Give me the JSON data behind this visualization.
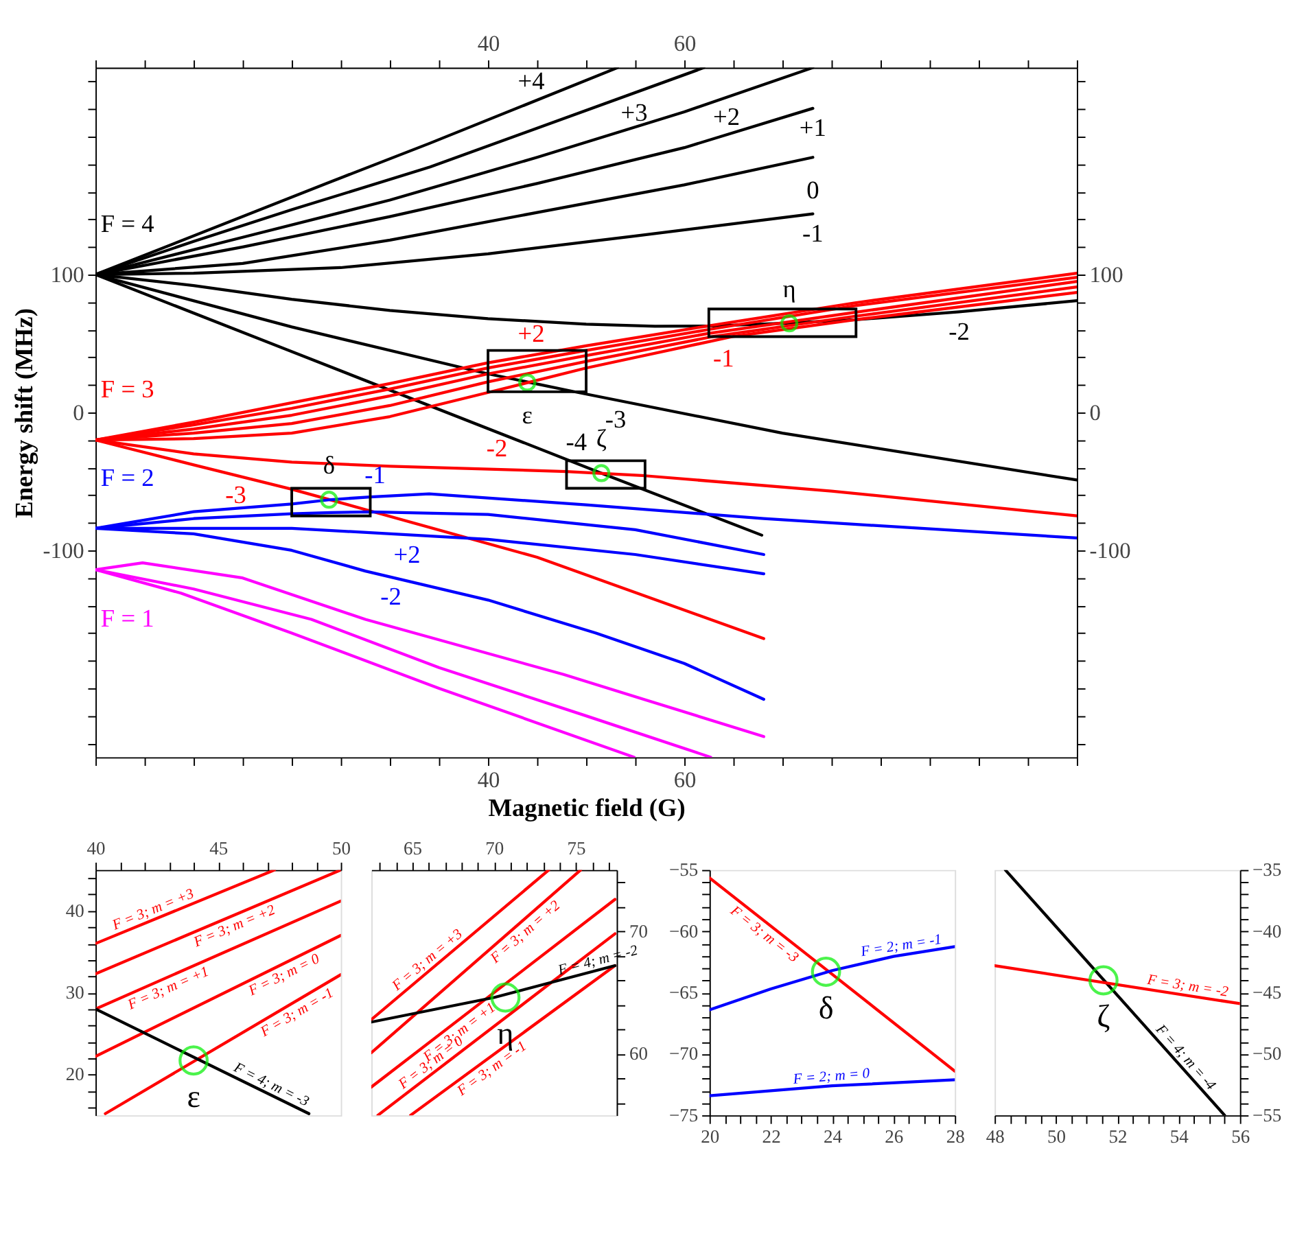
{
  "chart_data": [
    {
      "type": "line",
      "xlabel": "Magnetic field (G)",
      "ylabel": "Energy shift (MHz)",
      "grid": false,
      "xlim": [
        0,
        100
      ],
      "ylim": [
        -250,
        250
      ],
      "x2lim": [
        0,
        100
      ],
      "y2lim": [
        -250,
        250
      ],
      "xticks": [
        {
          "value": 0,
          "label": null
        },
        {
          "value": 5,
          "label": null
        },
        {
          "value": 10,
          "label": null
        },
        {
          "value": 15,
          "label": null
        },
        {
          "value": 20,
          "label": null
        },
        {
          "value": 25,
          "label": null
        },
        {
          "value": 30,
          "label": null
        },
        {
          "value": 35,
          "label": null
        },
        40,
        {
          "value": 45,
          "label": null
        },
        {
          "value": 50,
          "label": null
        },
        {
          "value": 55,
          "label": null
        },
        60,
        {
          "value": 65,
          "label": null
        },
        {
          "value": 70,
          "label": null
        },
        {
          "value": 75,
          "label": null
        },
        {
          "value": 80,
          "label": null
        },
        {
          "value": 85,
          "label": null
        },
        {
          "value": 90,
          "label": null
        },
        {
          "value": 95,
          "label": null
        },
        {
          "value": 100,
          "label": null
        }
      ],
      "x2ticks": [
        {
          "value": 0,
          "label": null
        },
        {
          "value": 5,
          "label": null
        },
        {
          "value": 10,
          "label": null
        },
        {
          "value": 15,
          "label": null
        },
        {
          "value": 20,
          "label": null
        },
        {
          "value": 25,
          "label": null
        },
        {
          "value": 30,
          "label": null
        },
        {
          "value": 35,
          "label": null
        },
        40,
        {
          "value": 45,
          "label": null
        },
        {
          "value": 50,
          "label": null
        },
        {
          "value": 55,
          "label": null
        },
        60,
        {
          "value": 65,
          "label": null
        },
        {
          "value": 70,
          "label": null
        },
        {
          "value": 75,
          "label": null
        },
        {
          "value": 80,
          "label": null
        },
        {
          "value": 85,
          "label": null
        },
        {
          "value": 90,
          "label": null
        },
        {
          "value": 95,
          "label": null
        },
        {
          "value": 100,
          "label": null
        }
      ],
      "yticks": [
        {
          "value": -240,
          "label": null
        },
        {
          "value": -220,
          "label": null
        },
        {
          "value": -200,
          "label": null
        },
        {
          "value": -180,
          "label": null
        },
        {
          "value": -160,
          "label": null
        },
        {
          "value": -140,
          "label": null
        },
        {
          "value": -120,
          "label": null
        },
        -100,
        {
          "value": -80,
          "label": null
        },
        {
          "value": -60,
          "label": null
        },
        {
          "value": -40,
          "label": null
        },
        {
          "value": -20,
          "label": null
        },
        0,
        {
          "value": 20,
          "label": null
        },
        {
          "value": 40,
          "label": null
        },
        {
          "value": 60,
          "label": null
        },
        {
          "value": 80,
          "label": null
        },
        100,
        {
          "value": 120,
          "label": null
        },
        {
          "value": 140,
          "label": null
        },
        {
          "value": 160,
          "label": null
        },
        {
          "value": 180,
          "label": null
        },
        {
          "value": 200,
          "label": null
        },
        {
          "value": 220,
          "label": null
        },
        {
          "value": 240,
          "label": null
        }
      ],
      "y2ticks": [
        {
          "value": -240,
          "label": null
        },
        {
          "value": -220,
          "label": null
        },
        {
          "value": -200,
          "label": null
        },
        {
          "value": -180,
          "label": null
        },
        {
          "value": -160,
          "label": null
        },
        {
          "value": -140,
          "label": null
        },
        {
          "value": -120,
          "label": null
        },
        -100,
        {
          "value": -80,
          "label": null
        },
        {
          "value": -60,
          "label": null
        },
        {
          "value": -40,
          "label": null
        },
        {
          "value": -20,
          "label": null
        },
        0,
        {
          "value": 20,
          "label": null
        },
        {
          "value": 40,
          "label": null
        },
        {
          "value": 60,
          "label": null
        },
        {
          "value": 80,
          "label": null
        },
        100,
        {
          "value": 120,
          "label": null
        },
        {
          "value": 140,
          "label": null
        },
        {
          "value": 160,
          "label": null
        },
        {
          "value": 180,
          "label": null
        },
        {
          "value": 200,
          "label": null
        },
        {
          "value": 220,
          "label": null
        },
        {
          "value": 240,
          "label": null
        }
      ],
      "series": [
        {
          "color": "#000000",
          "x": [
            0,
            23.5,
            34,
            53.2
          ],
          "values": [
            100,
            166,
            195,
            250
          ]
        },
        {
          "color": "#000000",
          "x": [
            0,
            10,
            20,
            34.1,
            62
          ],
          "values": [
            100,
            124,
            147,
            178,
            250
          ]
        },
        {
          "color": "#000000",
          "x": [
            0,
            15,
            30,
            45,
            60,
            73.1
          ],
          "values": [
            100,
            127,
            154,
            185,
            218,
            250
          ]
        },
        {
          "color": "#000000",
          "x": [
            0,
            15,
            30,
            45,
            60,
            73.1
          ],
          "values": [
            100,
            120,
            142,
            166,
            192,
            220.5
          ]
        },
        {
          "color": "#000000",
          "x": [
            0,
            15,
            30,
            45,
            60,
            73.1
          ],
          "values": [
            100,
            108,
            125,
            145,
            165,
            185
          ]
        },
        {
          "color": "#000000",
          "x": [
            0,
            10,
            25,
            40,
            55,
            73.1
          ],
          "values": [
            100,
            101,
            105,
            115,
            128,
            144
          ]
        },
        {
          "color": "#000000",
          "x": [
            0,
            10,
            20,
            30,
            40,
            50,
            57,
            62.5,
            70,
            77.4,
            88,
            100
          ],
          "values": [
            100,
            92,
            82,
            74,
            68,
            64,
            62.5,
            62.6,
            64.6,
            67.2,
            73,
            81
          ]
        },
        {
          "color": "#000000",
          "x": [
            0,
            20,
            40,
            48.7,
            70,
            100
          ],
          "values": [
            100,
            62,
            28,
            15.2,
            -15,
            -49
          ]
        },
        {
          "color": "#000000",
          "x": [
            0,
            51.55,
            67.9
          ],
          "values": [
            100,
            -44,
            -89
          ]
        },
        {
          "color": "#ff0000",
          "x": [
            0,
            10,
            20,
            30,
            40,
            50,
            62.45,
            77.4,
            100
          ],
          "values": [
            -20,
            -7,
            7,
            21,
            36,
            48.3,
            62.8,
            79.5,
            101
          ]
        },
        {
          "color": "#ff0000",
          "x": [
            0,
            10,
            20,
            30,
            40,
            50,
            62.45,
            77.4,
            100
          ],
          "values": [
            -20,
            -9,
            3,
            17,
            32.3,
            45,
            60.1,
            77.4,
            98
          ]
        },
        {
          "color": "#ff0000",
          "x": [
            0,
            10,
            20,
            30,
            40,
            50,
            62.45,
            77.4,
            100
          ],
          "values": [
            -20,
            -12,
            -2,
            12,
            28,
            41.2,
            57.3,
            72.6,
            95
          ]
        },
        {
          "color": "#ff0000",
          "x": [
            0,
            10,
            20,
            30,
            40,
            50,
            62.9,
            77.4,
            100
          ],
          "values": [
            -20,
            -15,
            -8,
            5,
            22.2,
            37,
            55,
            69.8,
            91
          ]
        },
        {
          "color": "#ff0000",
          "x": [
            0,
            10,
            20,
            30,
            40.4,
            50,
            64.9,
            77.4,
            100
          ],
          "values": [
            -20,
            -19,
            -15,
            -3,
            15.2,
            32.2,
            55,
            67.2,
            87
          ]
        },
        {
          "color": "#ff0000",
          "x": [
            0,
            10,
            20,
            30,
            48,
            56,
            75,
            100
          ],
          "values": [
            -20,
            -30,
            -36,
            -39,
            -42.8,
            -45.9,
            -57,
            -75
          ]
        },
        {
          "color": "#ff0000",
          "x": [
            0,
            10,
            20,
            28,
            45,
            68.1
          ],
          "values": [
            -20,
            -38,
            -55.65,
            -71.4,
            -105,
            -164
          ]
        },
        {
          "color": "#0000ff",
          "x": [
            0,
            10,
            20,
            24,
            28,
            34,
            50,
            68.1,
            100
          ],
          "values": [
            -84,
            -72,
            -66.4,
            -63.2,
            -61.25,
            -59,
            -67,
            -77,
            -91
          ]
        },
        {
          "color": "#0000ff",
          "x": [
            0,
            10,
            20,
            24,
            28,
            40,
            55,
            68.1
          ],
          "values": [
            -84,
            -77,
            -73.4,
            -72.6,
            -72.1,
            -74,
            -85,
            -103
          ]
        },
        {
          "color": "#0000ff",
          "x": [
            0,
            20,
            40,
            55,
            68.1
          ],
          "values": [
            -84,
            -84,
            -92,
            -103,
            -117
          ]
        },
        {
          "color": "#0000ff",
          "x": [
            0,
            10,
            20,
            27.5,
            40,
            51,
            60,
            68.1
          ],
          "values": [
            -84,
            -88,
            -100,
            -115,
            -136,
            -160,
            -182,
            -208
          ]
        },
        {
          "color": "#ff00ff",
          "x": [
            0,
            4.8,
            15,
            27.5,
            47.7,
            68.1
          ],
          "values": [
            -114,
            -109,
            -120,
            -150,
            -190,
            -235
          ]
        },
        {
          "color": "#ff00ff",
          "x": [
            0,
            10,
            22,
            35,
            50,
            62.7
          ],
          "values": [
            -114,
            -128,
            -150,
            -185,
            -220,
            -250
          ]
        },
        {
          "color": "#ff00ff",
          "x": [
            0,
            8.7,
            20,
            35,
            54.9
          ],
          "values": [
            -114,
            -131,
            -160,
            -200,
            -250
          ]
        },
        {
          "type": "scatter",
          "marker": "circle",
          "color": "#00ee00",
          "x": [
            23.8,
            44,
            51.55,
            70.7
          ],
          "values": [
            -63.3,
            21.7,
            -44,
            64.6
          ]
        }
      ],
      "annotations": [
        {
          "text": "F = 4",
          "x": 0,
          "y": 100
        },
        {
          "text": "F = 3",
          "x": 0,
          "y": -20
        },
        {
          "text": "F = 2",
          "x": 0,
          "y": -84
        },
        {
          "text": "F = 1",
          "x": 0,
          "y": -114
        },
        {
          "text": "+4",
          "x": 44.4,
          "y": 224.8
        },
        {
          "text": "+3",
          "x": 54.9,
          "y": 231.7
        },
        {
          "text": "+2",
          "x": 64.3,
          "y": 228.5
        },
        {
          "text": "+1",
          "x": 73.1,
          "y": 220.5
        },
        {
          "text": "0",
          "x": 73.1,
          "y": 185
        },
        {
          "text": "-1",
          "x": 73.1,
          "y": 144
        },
        {
          "text": "-2",
          "x": 88,
          "y": 73
        },
        {
          "text": "-3",
          "x": 53,
          "y": 9.1
        },
        {
          "text": "-4",
          "x": 49,
          "y": -36.88
        },
        {
          "text": "+2",
          "x": 44.4,
          "y": 41.41
        },
        {
          "text": "-1",
          "x": 64,
          "y": 53.62
        },
        {
          "text": "-2",
          "x": 40.9,
          "y": -41.3
        },
        {
          "text": "-3",
          "x": 14.3,
          "y": -45.59
        },
        {
          "text": "-1",
          "x": 28.5,
          "y": -61.06
        },
        {
          "text": "+2",
          "x": 31.75,
          "y": -88.7
        },
        {
          "text": "-2",
          "x": 30.1,
          "y": -119.37
        },
        {
          "text": "ε",
          "x": 44,
          "y": 21.7
        },
        {
          "text": "η",
          "x": 70.7,
          "y": 64.6
        },
        {
          "text": "δ",
          "x": 23.8,
          "y": -63.3
        },
        {
          "text": "ζ",
          "x": 51.55,
          "y": -44
        }
      ]
    },
    {
      "type": "line",
      "grid": false,
      "xlim": [
        40,
        50
      ],
      "ylim": [
        15,
        45
      ],
      "xticks": [
        40,
        {
          "value": 41,
          "label": null
        },
        {
          "value": 42,
          "label": null
        },
        {
          "value": 43,
          "label": null
        },
        {
          "value": 44,
          "label": null
        },
        45,
        {
          "value": 46,
          "label": null
        },
        {
          "value": 47,
          "label": null
        },
        {
          "value": 48,
          "label": null
        },
        {
          "value": 49,
          "label": null
        },
        50
      ],
      "yticks": [
        {
          "value": 16,
          "label": null
        },
        {
          "value": 18,
          "label": null
        },
        20,
        {
          "value": 22,
          "label": null
        },
        {
          "value": 24,
          "label": null
        },
        {
          "value": 26,
          "label": null
        },
        {
          "value": 28,
          "label": null
        },
        30,
        {
          "value": 32,
          "label": null
        },
        {
          "value": 34,
          "label": null
        },
        {
          "value": 36,
          "label": null
        },
        {
          "value": 38,
          "label": null
        },
        40,
        {
          "value": 42,
          "label": null
        },
        {
          "value": 44,
          "label": null
        }
      ],
      "series": [
        {
          "color": "#ff0000",
          "x": [
            40,
            47.3
          ],
          "values": [
            36,
            45
          ]
        },
        {
          "color": "#ff0000",
          "x": [
            40,
            50
          ],
          "values": [
            32.3,
            45
          ]
        },
        {
          "color": "#ff0000",
          "x": [
            40,
            50
          ],
          "values": [
            28,
            41.2
          ]
        },
        {
          "color": "#ff0000",
          "x": [
            40,
            50
          ],
          "values": [
            22.2,
            37
          ]
        },
        {
          "color": "#ff0000",
          "x": [
            40.4,
            50
          ],
          "values": [
            15.2,
            32.2
          ]
        },
        {
          "color": "#000000",
          "x": [
            40,
            48.7
          ],
          "values": [
            28,
            15.2
          ]
        },
        {
          "type": "scatter",
          "marker": "circle",
          "color": "#00ee00",
          "x": [
            44
          ],
          "values": [
            21.7
          ]
        }
      ],
      "annotations": [
        {
          "text": "F = 3; m = +3",
          "x": 42.5,
          "y": 39.08
        },
        {
          "text": "F = 3; m = +2",
          "x": 45.5,
          "y": 39.29
        },
        {
          "text": "F = 3; m = +1",
          "x": 42.8,
          "y": 31.7
        },
        {
          "text": "F = 3; m = 0",
          "x": 47.5,
          "y": 33.3
        },
        {
          "text": "F = 3; m = -1",
          "x": 48.0,
          "y": 28.66
        },
        {
          "text": "F = 4; m = -3",
          "x": 47.0,
          "y": 17.7
        },
        {
          "text": "ε",
          "x": 44,
          "y": 21.7
        }
      ]
    },
    {
      "type": "line",
      "grid": false,
      "xlim": [
        62.5,
        77.5
      ],
      "ylim": [
        55,
        75
      ],
      "xticks": [
        {
          "value": 63,
          "label": null
        },
        {
          "value": 64,
          "label": null
        },
        65,
        {
          "value": 66,
          "label": null
        },
        {
          "value": 67,
          "label": null
        },
        {
          "value": 68,
          "label": null
        },
        {
          "value": 69,
          "label": null
        },
        70,
        {
          "value": 71,
          "label": null
        },
        {
          "value": 72,
          "label": null
        },
        {
          "value": 73,
          "label": null
        },
        {
          "value": 74,
          "label": null
        },
        75,
        {
          "value": 76,
          "label": null
        },
        {
          "value": 77,
          "label": null
        }
      ],
      "yticks": [
        {
          "value": 56,
          "label": null
        },
        {
          "value": 58,
          "label": null
        },
        60,
        {
          "value": 62,
          "label": null
        },
        {
          "value": 64,
          "label": null
        },
        {
          "value": 66,
          "label": null
        },
        {
          "value": 68,
          "label": null
        },
        70,
        {
          "value": 72,
          "label": null
        },
        {
          "value": 74,
          "label": null
        }
      ],
      "series": [
        {
          "color": "#ff0000",
          "x": [
            62.5,
            73.35
          ],
          "values": [
            62.8,
            75
          ]
        },
        {
          "color": "#ff0000",
          "x": [
            62.5,
            75.3
          ],
          "values": [
            60.1,
            75
          ]
        },
        {
          "color": "#ff0000",
          "x": [
            62.5,
            77.4
          ],
          "values": [
            57.3,
            72.6
          ]
        },
        {
          "color": "#ff0000",
          "x": [
            62.9,
            77.4
          ],
          "values": [
            55,
            69.8
          ]
        },
        {
          "color": "#ff0000",
          "x": [
            64.9,
            77.4
          ],
          "values": [
            55,
            67.2
          ]
        },
        {
          "color": "#000000",
          "x": [
            62.5,
            70,
            77.4
          ],
          "values": [
            62.6,
            64.6,
            67.2
          ]
        },
        {
          "type": "scatter",
          "marker": "circle",
          "color": "#00ee00",
          "x": [
            70.7
          ],
          "values": [
            64.6
          ]
        }
      ],
      "annotations": [
        {
          "text": "F = 3; m = +3",
          "x": 66.3,
          "y": 67.07
        },
        {
          "text": "F = 3; m = +2",
          "x": 71.5,
          "y": 70.58
        },
        {
          "text": "F = 3; m = +1",
          "x": 67.5,
          "y": 62.44
        },
        {
          "text": "F = 3; m = 0",
          "x": 66.5,
          "y": 58.67
        },
        {
          "text": "F = 3; m = -1",
          "x": 69.5,
          "y": 59.49
        },
        {
          "text": "F = 4; m = -2",
          "x": 76.5,
          "y": 66.88
        },
        {
          "text": "η",
          "x": 70.7,
          "y": 64.6
        }
      ]
    },
    {
      "type": "line",
      "grid": false,
      "xlim": [
        20,
        28
      ],
      "ylim": [
        -75,
        -55
      ],
      "xticks": [
        20,
        {
          "value": 20.5,
          "label": null
        },
        {
          "value": 21,
          "label": null
        },
        {
          "value": 21.5,
          "label": null
        },
        22,
        {
          "value": 22.5,
          "label": null
        },
        {
          "value": 23,
          "label": null
        },
        {
          "value": 23.5,
          "label": null
        },
        24,
        {
          "value": 24.5,
          "label": null
        },
        {
          "value": 25,
          "label": null
        },
        {
          "value": 25.5,
          "label": null
        },
        26,
        {
          "value": 26.5,
          "label": null
        },
        {
          "value": 27,
          "label": null
        },
        {
          "value": 27.5,
          "label": null
        },
        28
      ],
      "yticks": [
        {
          "value": -75,
          "label": "−75"
        },
        {
          "value": -74,
          "label": null
        },
        {
          "value": -73,
          "label": null
        },
        {
          "value": -72,
          "label": null
        },
        {
          "value": -71,
          "label": null
        },
        {
          "value": -70,
          "label": "−70"
        },
        {
          "value": -69,
          "label": null
        },
        {
          "value": -68,
          "label": null
        },
        {
          "value": -67,
          "label": null
        },
        {
          "value": -66,
          "label": null
        },
        {
          "value": -65,
          "label": "−65"
        },
        {
          "value": -64,
          "label": null
        },
        {
          "value": -63,
          "label": null
        },
        {
          "value": -62,
          "label": null
        },
        {
          "value": -61,
          "label": null
        },
        {
          "value": -60,
          "label": "−60"
        },
        {
          "value": -59,
          "label": null
        },
        {
          "value": -58,
          "label": null
        },
        {
          "value": -57,
          "label": null
        },
        {
          "value": -56,
          "label": null
        },
        {
          "value": -55,
          "label": "−55"
        }
      ],
      "series": [
        {
          "color": "#ff0000",
          "x": [
            20,
            24,
            28
          ],
          "values": [
            -55.65,
            -63.5,
            -71.4
          ]
        },
        {
          "color": "#0000ff",
          "x": [
            20,
            22,
            24,
            26,
            28
          ],
          "values": [
            -66.4,
            -64.7,
            -63.2,
            -62.05,
            -61.25
          ]
        },
        {
          "color": "#0000ff",
          "x": [
            20,
            24,
            28
          ],
          "values": [
            -73.4,
            -72.6,
            -72.1
          ]
        },
        {
          "type": "scatter",
          "marker": "circle",
          "color": "#00ee00",
          "x": [
            23.8
          ],
          "values": [
            -63.3
          ]
        }
      ],
      "annotations": [
        {
          "text": "F = 3; m = -3",
          "x": 22.0,
          "y": -59.58
        },
        {
          "text": "F = 2; m = -1",
          "x": 26.3,
          "y": -61.93
        },
        {
          "text": "F = 2; m = 0",
          "x": 24.0,
          "y": -72.6
        },
        {
          "text": "δ",
          "x": 23.8,
          "y": -63.3
        }
      ]
    },
    {
      "type": "line",
      "grid": false,
      "xlim": [
        48,
        56
      ],
      "ylim": [
        -55,
        -35
      ],
      "xticks": [
        48,
        {
          "value": 48.5,
          "label": null
        },
        {
          "value": 49,
          "label": null
        },
        {
          "value": 49.5,
          "label": null
        },
        50,
        {
          "value": 50.5,
          "label": null
        },
        {
          "value": 51,
          "label": null
        },
        {
          "value": 51.5,
          "label": null
        },
        52,
        {
          "value": 52.5,
          "label": null
        },
        {
          "value": 53,
          "label": null
        },
        {
          "value": 53.5,
          "label": null
        },
        54,
        {
          "value": 54.5,
          "label": null
        },
        {
          "value": 55,
          "label": null
        },
        {
          "value": 55.5,
          "label": null
        },
        56
      ],
      "yticks": [
        {
          "value": -55,
          "label": "−55"
        },
        {
          "value": -54,
          "label": null
        },
        {
          "value": -53,
          "label": null
        },
        {
          "value": -52,
          "label": null
        },
        {
          "value": -51,
          "label": null
        },
        {
          "value": -50,
          "label": "−50"
        },
        {
          "value": -49,
          "label": null
        },
        {
          "value": -48,
          "label": null
        },
        {
          "value": -47,
          "label": null
        },
        {
          "value": -46,
          "label": null
        },
        {
          "value": -45,
          "label": "−45"
        },
        {
          "value": -44,
          "label": null
        },
        {
          "value": -43,
          "label": null
        },
        {
          "value": -42,
          "label": null
        },
        {
          "value": -41,
          "label": null
        },
        {
          "value": -40,
          "label": "−40"
        },
        {
          "value": -39,
          "label": null
        },
        {
          "value": -38,
          "label": null
        },
        {
          "value": -37,
          "label": null
        },
        {
          "value": -36,
          "label": null
        },
        {
          "value": -35,
          "label": "−35"
        }
      ],
      "series": [
        {
          "color": "#000000",
          "x": [
            48.35,
            55.5
          ],
          "values": [
            -35,
            -55
          ]
        },
        {
          "color": "#ff0000",
          "x": [
            48,
            56
          ],
          "values": [
            -42.8,
            -45.9
          ]
        },
        {
          "type": "scatter",
          "marker": "circle",
          "color": "#00ee00",
          "x": [
            51.55
          ],
          "values": [
            -44
          ]
        }
      ],
      "annotations": [
        {
          "text": "F = 3; m = -2",
          "x": 54.25,
          "y": -45.22
        },
        {
          "text": "F = 4; m = -4",
          "x": 54.0,
          "y": -50.8
        },
        {
          "text": "ζ",
          "x": 51.55,
          "y": -44
        }
      ]
    }
  ]
}
